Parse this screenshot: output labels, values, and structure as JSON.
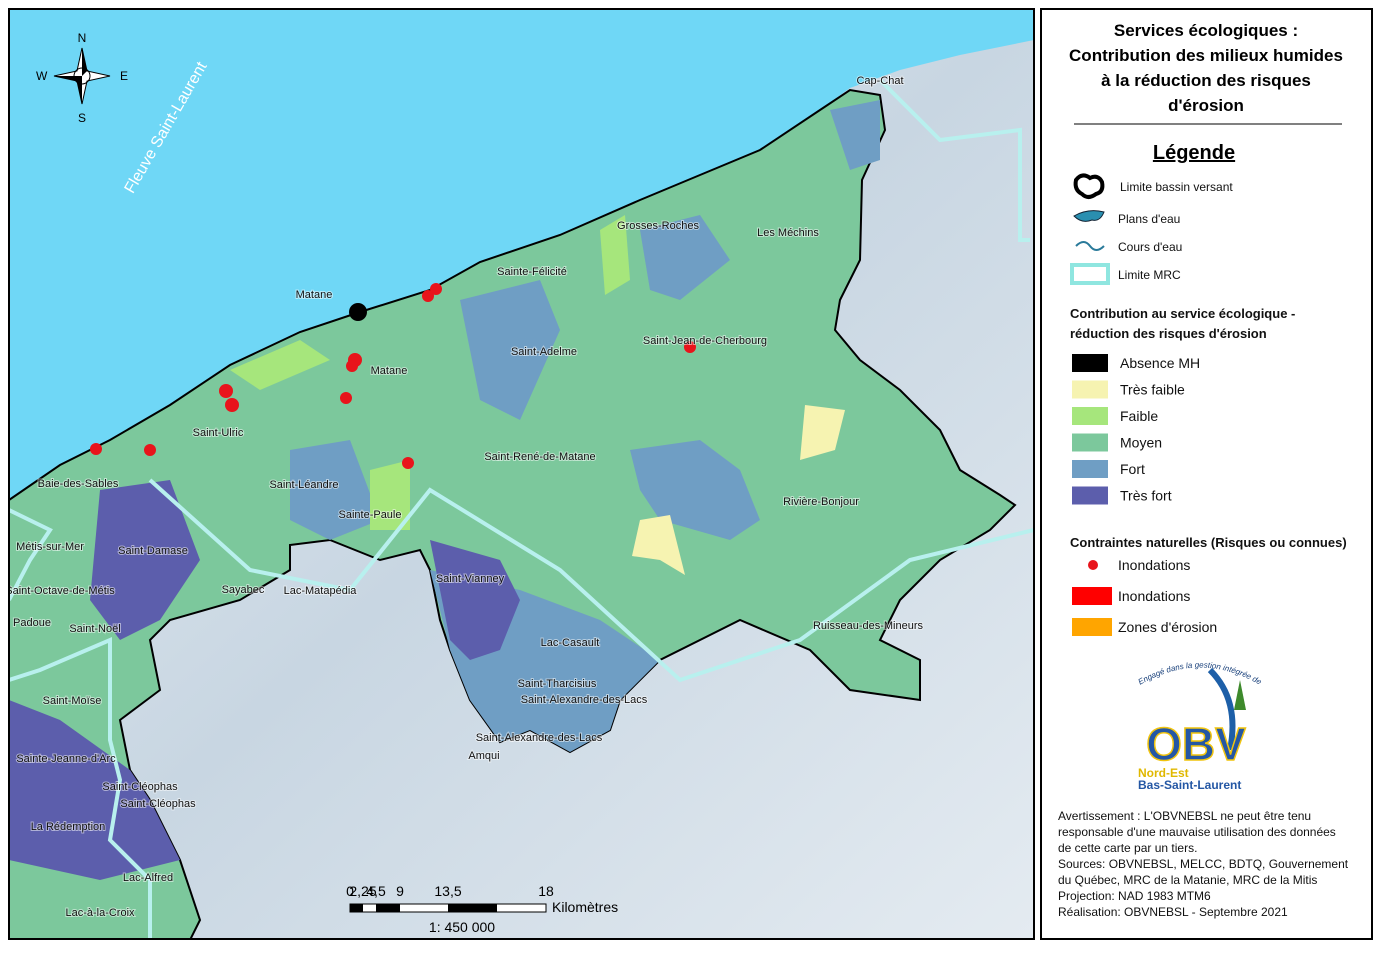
{
  "map": {
    "water_label": "Fleuve Saint-Laurent",
    "compass": {
      "n": "N",
      "s": "S",
      "e": "E",
      "w": "W"
    },
    "places": [
      "Cap-Chat",
      "Grosses-Roches",
      "Les Méchins",
      "Sainte-Félicité",
      "Matane",
      "Saint-Adelme",
      "Saint-Jean-de-Cherbourg",
      "Matane",
      "Saint-Ulric",
      "Saint-René-de-Matane",
      "Baie-des-Sables",
      "Saint-Léandre",
      "Rivière-Bonjour",
      "Sainte-Paule",
      "Métis-sur-Mer",
      "Saint-Damase",
      "Saint-Vianney",
      "Saint-Octave-de-Métis",
      "Sayabec",
      "Lac-Matapédia",
      "Padoue",
      "Saint-Noël",
      "Lac-Casault",
      "Ruisseau-des-Mineurs",
      "Saint-Moïse",
      "Saint-Tharcisius",
      "Saint-Alexandre-des-Lacs",
      "Saint-Alexandre-des-Lacs",
      "Amqui",
      "Sainte-Jeanne-d'Arc",
      "Saint-Cléophas",
      "Saint-Cléophas",
      "La Rédemption",
      "Lac-Alfred",
      "Lac-à-la-Croix"
    ],
    "scale": {
      "ticks": [
        "0",
        "2,25",
        "4,5",
        "9",
        "13,5",
        "18"
      ],
      "unit": "Kilomètres",
      "ratio": "1: 450 000"
    }
  },
  "legend": {
    "title": [
      "Services écologiques :",
      "Contribution des milieux humides",
      "à la réduction des risques",
      "d'érosion"
    ],
    "heading": "Légende",
    "base_items": [
      "Limite bassin versant",
      "Plans d'eau",
      "Cours d'eau",
      "Limite MRC"
    ],
    "contribution_title": [
      "Contribution au service écologique -",
      "réduction des risques d'érosion"
    ],
    "classes": [
      {
        "name": "Absence MH",
        "color": "#000000"
      },
      {
        "name": "Très faible",
        "color": "#f6f3b1"
      },
      {
        "name": "Faible",
        "color": "#a6e67c"
      },
      {
        "name": "Moyen",
        "color": "#7cc89c"
      },
      {
        "name": "Fort",
        "color": "#6f9ec4"
      },
      {
        "name": "Très fort",
        "color": "#5c5eac"
      }
    ],
    "constraints_title": "Contraintes naturelles (Risques ou connues)",
    "constraints": [
      {
        "name": "Inondations",
        "color": "#e8141b"
      },
      {
        "name": "Inondations",
        "color": "#ff0000"
      },
      {
        "name": "Zones d'érosion",
        "color": "#ffa500"
      }
    ],
    "logo": {
      "motto": "Engagé dans la gestion intégrée de l'eau",
      "acronym": "OBV",
      "line1": "Nord-Est",
      "line2": "Bas-Saint-Laurent"
    },
    "notes": [
      "Avertissement : L'OBVNEBSL ne peut être tenu",
      "responsable d'une mauvaise utilisation des données",
      "de cette carte par un tiers.",
      "Sources: OBVNEBSL, MELCC, BDTQ, Gouvernement",
      "du Québec, MRC de la Matanie, MRC de la Mitis",
      "Projection: NAD 1983 MTM6",
      "Réalisation: OBVNEBSL - Septembre 2021"
    ]
  }
}
